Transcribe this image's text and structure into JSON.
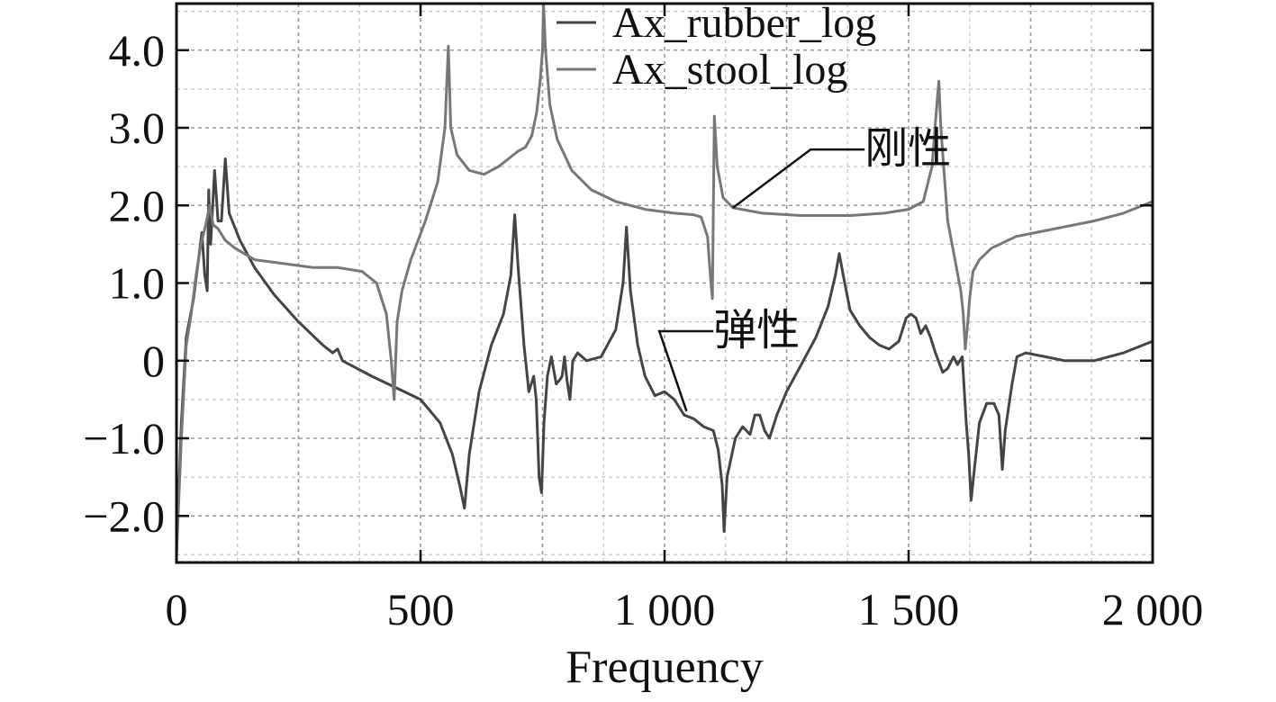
{
  "chart_data": {
    "type": "line",
    "xlabel": "Frequency",
    "ylabel": "",
    "xlim": [
      0,
      2000
    ],
    "ylim": [
      -2.6,
      4.6
    ],
    "x_ticks": [
      0,
      500,
      1000,
      1500,
      2000
    ],
    "x_tick_labels": [
      "0",
      "500",
      "1 000",
      "1 500",
      "2 000"
    ],
    "y_ticks": [
      -2.0,
      -1.0,
      0,
      1.0,
      2.0,
      3.0,
      4.0
    ],
    "y_tick_labels": [
      "−2.0",
      "−1.0",
      "0",
      "1.0",
      "2.0",
      "3.0",
      "4.0"
    ],
    "grid": "dashed, major and minor",
    "legend_position": "top",
    "series": [
      {
        "name": "Ax_rubber_log",
        "color": "#444444",
        "points": [
          [
            0,
            -2.5
          ],
          [
            10,
            -0.8
          ],
          [
            20,
            0.3
          ],
          [
            35,
            0.8
          ],
          [
            45,
            1.3
          ],
          [
            52,
            1.65
          ],
          [
            58,
            1.1
          ],
          [
            63,
            0.9
          ],
          [
            66,
            2.2
          ],
          [
            70,
            1.5
          ],
          [
            78,
            2.45
          ],
          [
            85,
            1.8
          ],
          [
            92,
            1.8
          ],
          [
            100,
            2.6
          ],
          [
            108,
            1.9
          ],
          [
            130,
            1.55
          ],
          [
            160,
            1.2
          ],
          [
            200,
            0.85
          ],
          [
            250,
            0.5
          ],
          [
            300,
            0.2
          ],
          [
            320,
            0.1
          ],
          [
            330,
            0.15
          ],
          [
            340,
            0.0
          ],
          [
            400,
            -0.2
          ],
          [
            450,
            -0.35
          ],
          [
            500,
            -0.5
          ],
          [
            540,
            -0.8
          ],
          [
            565,
            -1.2
          ],
          [
            580,
            -1.6
          ],
          [
            590,
            -1.9
          ],
          [
            600,
            -1.2
          ],
          [
            620,
            -0.4
          ],
          [
            645,
            0.2
          ],
          [
            670,
            0.6
          ],
          [
            685,
            1.1
          ],
          [
            693,
            1.88
          ],
          [
            700,
            1.2
          ],
          [
            712,
            0.2
          ],
          [
            722,
            -0.4
          ],
          [
            727,
            -0.3
          ],
          [
            732,
            -0.2
          ],
          [
            737,
            -0.5
          ],
          [
            743,
            -1.5
          ],
          [
            748,
            -1.7
          ],
          [
            753,
            -0.8
          ],
          [
            760,
            -0.2
          ],
          [
            768,
            0.05
          ],
          [
            778,
            -0.3
          ],
          [
            785,
            -0.25
          ],
          [
            790,
            -0.2
          ],
          [
            795,
            0.05
          ],
          [
            800,
            -0.25
          ],
          [
            806,
            -0.5
          ],
          [
            812,
            0.0
          ],
          [
            822,
            0.1
          ],
          [
            840,
            0.0
          ],
          [
            870,
            0.05
          ],
          [
            900,
            0.4
          ],
          [
            915,
            1.0
          ],
          [
            922,
            1.72
          ],
          [
            930,
            0.9
          ],
          [
            945,
            0.2
          ],
          [
            960,
            -0.2
          ],
          [
            980,
            -0.45
          ],
          [
            1000,
            -0.4
          ],
          [
            1020,
            -0.5
          ],
          [
            1040,
            -0.7
          ],
          [
            1060,
            -0.75
          ],
          [
            1080,
            -0.85
          ],
          [
            1100,
            -0.9
          ],
          [
            1110,
            -1.15
          ],
          [
            1118,
            -1.6
          ],
          [
            1122,
            -2.2
          ],
          [
            1128,
            -1.5
          ],
          [
            1145,
            -1.0
          ],
          [
            1160,
            -0.85
          ],
          [
            1175,
            -0.95
          ],
          [
            1185,
            -0.7
          ],
          [
            1195,
            -0.7
          ],
          [
            1205,
            -0.9
          ],
          [
            1215,
            -1.0
          ],
          [
            1230,
            -0.7
          ],
          [
            1250,
            -0.4
          ],
          [
            1280,
            -0.05
          ],
          [
            1310,
            0.3
          ],
          [
            1335,
            0.7
          ],
          [
            1350,
            1.1
          ],
          [
            1358,
            1.38
          ],
          [
            1366,
            1.1
          ],
          [
            1380,
            0.65
          ],
          [
            1400,
            0.45
          ],
          [
            1420,
            0.3
          ],
          [
            1440,
            0.2
          ],
          [
            1460,
            0.15
          ],
          [
            1480,
            0.25
          ],
          [
            1495,
            0.55
          ],
          [
            1505,
            0.6
          ],
          [
            1515,
            0.55
          ],
          [
            1525,
            0.35
          ],
          [
            1535,
            0.45
          ],
          [
            1545,
            0.3
          ],
          [
            1555,
            0.1
          ],
          [
            1570,
            -0.15
          ],
          [
            1580,
            -0.1
          ],
          [
            1592,
            0.05
          ],
          [
            1600,
            -0.05
          ],
          [
            1610,
            0.05
          ],
          [
            1618,
            -0.8
          ],
          [
            1623,
            -1.2
          ],
          [
            1628,
            -1.8
          ],
          [
            1633,
            -1.5
          ],
          [
            1645,
            -0.8
          ],
          [
            1660,
            -0.55
          ],
          [
            1675,
            -0.55
          ],
          [
            1685,
            -0.7
          ],
          [
            1692,
            -1.4
          ],
          [
            1698,
            -0.9
          ],
          [
            1705,
            -0.6
          ],
          [
            1712,
            -0.3
          ],
          [
            1722,
            0.05
          ],
          [
            1740,
            0.1
          ],
          [
            1780,
            0.05
          ],
          [
            1820,
            0.0
          ],
          [
            1880,
            0.0
          ],
          [
            1940,
            0.1
          ],
          [
            2000,
            0.25
          ]
        ]
      },
      {
        "name": "Ax_stool_log",
        "color": "#777777",
        "points": [
          [
            0,
            -2.5
          ],
          [
            10,
            -1.0
          ],
          [
            20,
            0.2
          ],
          [
            30,
            0.6
          ],
          [
            40,
            1.1
          ],
          [
            50,
            1.5
          ],
          [
            60,
            1.75
          ],
          [
            68,
            2.0
          ],
          [
            75,
            1.75
          ],
          [
            85,
            1.7
          ],
          [
            100,
            1.55
          ],
          [
            120,
            1.45
          ],
          [
            160,
            1.3
          ],
          [
            220,
            1.25
          ],
          [
            280,
            1.2
          ],
          [
            330,
            1.2
          ],
          [
            380,
            1.15
          ],
          [
            410,
            1.0
          ],
          [
            430,
            0.6
          ],
          [
            440,
            0.0
          ],
          [
            446,
            -0.5
          ],
          [
            452,
            0.5
          ],
          [
            462,
            0.9
          ],
          [
            480,
            1.3
          ],
          [
            510,
            1.8
          ],
          [
            535,
            2.3
          ],
          [
            550,
            3.0
          ],
          [
            557,
            4.05
          ],
          [
            562,
            3.0
          ],
          [
            575,
            2.65
          ],
          [
            600,
            2.45
          ],
          [
            630,
            2.4
          ],
          [
            660,
            2.5
          ],
          [
            680,
            2.6
          ],
          [
            700,
            2.7
          ],
          [
            715,
            2.75
          ],
          [
            728,
            2.9
          ],
          [
            738,
            3.2
          ],
          [
            745,
            3.6
          ],
          [
            750,
            4.0
          ],
          [
            752,
            4.6
          ],
          [
            756,
            4.0
          ],
          [
            765,
            3.3
          ],
          [
            780,
            2.85
          ],
          [
            810,
            2.45
          ],
          [
            850,
            2.2
          ],
          [
            900,
            2.05
          ],
          [
            960,
            1.95
          ],
          [
            1020,
            1.9
          ],
          [
            1060,
            1.88
          ],
          [
            1075,
            1.85
          ],
          [
            1088,
            1.6
          ],
          [
            1095,
            1.0
          ],
          [
            1098,
            0.8
          ],
          [
            1102,
            3.15
          ],
          [
            1108,
            2.5
          ],
          [
            1120,
            2.1
          ],
          [
            1140,
            1.97
          ],
          [
            1200,
            1.9
          ],
          [
            1280,
            1.87
          ],
          [
            1380,
            1.87
          ],
          [
            1450,
            1.9
          ],
          [
            1500,
            1.95
          ],
          [
            1530,
            2.05
          ],
          [
            1548,
            2.5
          ],
          [
            1558,
            3.3
          ],
          [
            1562,
            3.6
          ],
          [
            1566,
            3.0
          ],
          [
            1580,
            1.8
          ],
          [
            1595,
            1.3
          ],
          [
            1607,
            0.9
          ],
          [
            1612,
            0.6
          ],
          [
            1616,
            0.15
          ],
          [
            1620,
            0.4
          ],
          [
            1625,
            0.8
          ],
          [
            1632,
            1.15
          ],
          [
            1645,
            1.3
          ],
          [
            1670,
            1.45
          ],
          [
            1720,
            1.6
          ],
          [
            1800,
            1.7
          ],
          [
            1880,
            1.8
          ],
          [
            1940,
            1.9
          ],
          [
            2000,
            2.05
          ]
        ]
      }
    ],
    "annotations": [
      {
        "text": "刚性",
        "series": "Ax_stool_log",
        "x": 1140,
        "y": 1.97,
        "label_x": 1410,
        "label_y": 2.72
      },
      {
        "text": "弹性",
        "series": "Ax_rubber_log",
        "x": 1045,
        "y": -0.65,
        "label_x": 1100,
        "label_y": 0.38
      }
    ]
  }
}
